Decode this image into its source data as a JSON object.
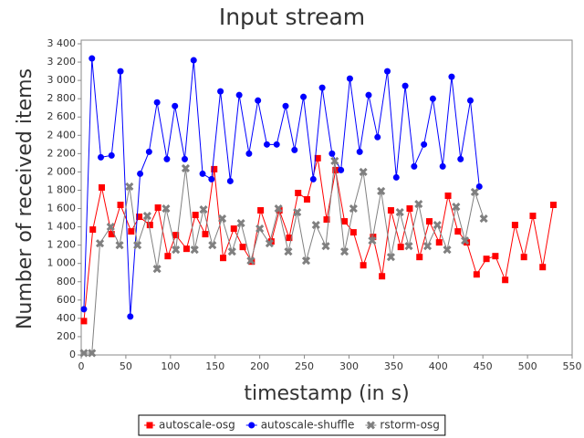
{
  "chart_data": {
    "type": "line",
    "title": "Input stream",
    "x_label": "timestamp (in s)",
    "y_label": "Number of received items",
    "xlim": [
      0,
      550
    ],
    "xticks": [
      0,
      50,
      100,
      150,
      200,
      250,
      300,
      350,
      400,
      450,
      500,
      550
    ],
    "ylim": [
      0,
      3400
    ],
    "yticks": [
      0,
      200,
      400,
      600,
      800,
      {
        "value": 1000,
        "label": "1 000"
      },
      {
        "value": 1200,
        "label": "1 200"
      },
      {
        "value": 1400,
        "label": "1 400"
      },
      {
        "value": 1600,
        "label": "1 600"
      },
      {
        "value": 1800,
        "label": "1 800"
      },
      {
        "value": 2000,
        "label": "2 000"
      },
      {
        "value": 2200,
        "label": "2 200"
      },
      {
        "value": 2400,
        "label": "2 400"
      },
      {
        "value": 2600,
        "label": "2 600"
      },
      {
        "value": 2800,
        "label": "2 800"
      },
      {
        "value": 3000,
        "label": "3 000"
      },
      {
        "value": 3200,
        "label": "3 200"
      },
      {
        "value": 3400,
        "label": "3 400"
      }
    ],
    "grid": false,
    "legend": "bottom",
    "series": [
      {
        "name": "autoscale-osg",
        "color": "#ff0000",
        "marker": "square",
        "x": [
          3,
          13,
          23,
          34,
          44,
          56,
          65,
          77,
          86,
          97,
          106,
          118,
          128,
          139,
          149,
          159,
          171,
          181,
          191,
          201,
          213,
          222,
          233,
          243,
          253,
          265,
          275,
          285,
          295,
          305,
          316,
          327,
          337,
          347,
          358,
          368,
          379,
          390,
          401,
          411,
          422,
          432,
          443,
          454,
          464,
          475,
          486,
          496,
          506,
          517,
          529
        ],
        "values": [
          370,
          1370,
          1830,
          1320,
          1640,
          1350,
          1510,
          1420,
          1610,
          1080,
          1310,
          1160,
          1530,
          1320,
          2030,
          1060,
          1380,
          1180,
          1020,
          1580,
          1240,
          1580,
          1280,
          1770,
          1700,
          2150,
          1480,
          2020,
          1460,
          1340,
          980,
          1290,
          860,
          1580,
          1180,
          1600,
          1070,
          1460,
          1230,
          1740,
          1350,
          1230,
          880,
          1050,
          1080,
          820,
          1420,
          1070,
          1520,
          960,
          1640
        ]
      },
      {
        "name": "autoscale-shuffle",
        "color": "#0000ff",
        "marker": "circle",
        "x": [
          3,
          12,
          22,
          34,
          44,
          55,
          66,
          76,
          85,
          96,
          105,
          116,
          126,
          136,
          146,
          156,
          167,
          177,
          188,
          198,
          208,
          219,
          229,
          239,
          249,
          260,
          270,
          281,
          291,
          301,
          312,
          322,
          332,
          343,
          353,
          363,
          373,
          384,
          394,
          405,
          415,
          425,
          436,
          446
        ],
        "values": [
          500,
          3240,
          2160,
          2180,
          3100,
          420,
          1980,
          2220,
          2760,
          2140,
          2720,
          2140,
          3220,
          1980,
          1920,
          2880,
          1900,
          2840,
          2200,
          2780,
          2300,
          2300,
          2720,
          2240,
          2820,
          1920,
          2920,
          2200,
          2020,
          3020,
          2220,
          2840,
          2380,
          3100,
          1940,
          2940,
          2060,
          2300,
          2800,
          2060,
          3040,
          2140,
          2780,
          1840
        ]
      },
      {
        "name": "rstorm-osg",
        "color": "#808080",
        "marker": "x",
        "x": [
          3,
          12,
          21,
          33,
          43,
          54,
          63,
          74,
          85,
          95,
          106,
          117,
          127,
          137,
          147,
          158,
          169,
          179,
          190,
          200,
          211,
          221,
          232,
          242,
          252,
          263,
          274,
          284,
          295,
          305,
          316,
          326,
          336,
          347,
          357,
          367,
          378,
          388,
          399,
          410,
          420,
          430,
          441,
          451
        ],
        "values": [
          20,
          20,
          1220,
          1400,
          1200,
          1840,
          1200,
          1520,
          940,
          1600,
          1150,
          2040,
          1150,
          1590,
          1200,
          1490,
          1130,
          1440,
          1030,
          1380,
          1220,
          1600,
          1130,
          1560,
          1030,
          1420,
          1190,
          2120,
          1130,
          1600,
          2000,
          1250,
          1790,
          1070,
          1560,
          1190,
          1650,
          1190,
          1420,
          1150,
          1620,
          1250,
          1780,
          1490
        ]
      }
    ]
  }
}
